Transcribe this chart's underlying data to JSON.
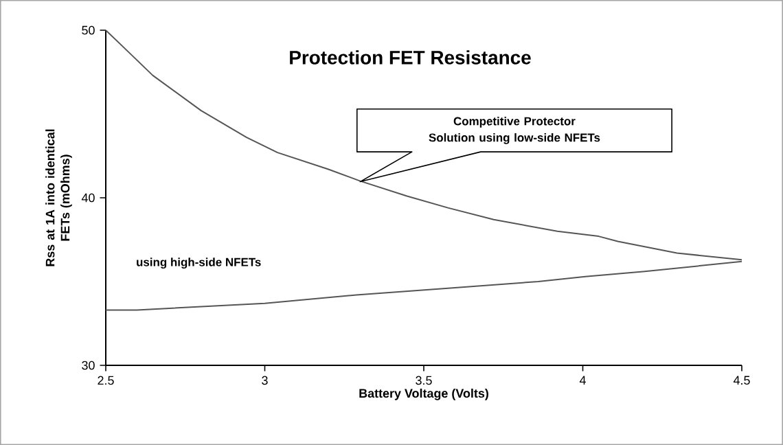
{
  "chart_data": {
    "type": "line",
    "title": "Protection FET Resistance",
    "xlabel": "Battery Voltage (Volts)",
    "ylabel": "Rss at 1A into identical FETs (mOhms)",
    "xlim": [
      2.5,
      4.5
    ],
    "xticks": [
      2.5,
      3,
      3.5,
      4,
      4.5
    ],
    "ylim": [
      30,
      50
    ],
    "yticks": [
      30,
      40,
      50
    ],
    "grid": false,
    "legend": false,
    "marker": "none",
    "line_style": "solid",
    "annotations": [
      "Competitive Protector Solution using low-side NFETs"
    ],
    "series": [
      {
        "color": "#555555",
        "x": [
          2.5,
          2.555,
          2.648,
          2.8,
          2.943,
          3.04,
          3.2,
          3.3,
          3.447,
          3.576,
          3.72,
          3.92,
          4.05,
          4.11,
          4.296,
          4.5
        ],
        "values": [
          50.0,
          49.0,
          47.3,
          45.2,
          43.6,
          42.7,
          41.7,
          41.0,
          40.1,
          39.4,
          38.7,
          38.0,
          37.7,
          37.4,
          36.7,
          36.3
        ]
      },
      {
        "name": "using high-side NFETs",
        "color": "#555555",
        "x": [
          2.5,
          2.598,
          3.0,
          3.288,
          3.576,
          3.86,
          4.008,
          4.195,
          4.5
        ],
        "values": [
          33.3,
          33.3,
          33.7,
          34.2,
          34.6,
          35.0,
          35.3,
          35.6,
          36.2
        ]
      }
    ]
  }
}
